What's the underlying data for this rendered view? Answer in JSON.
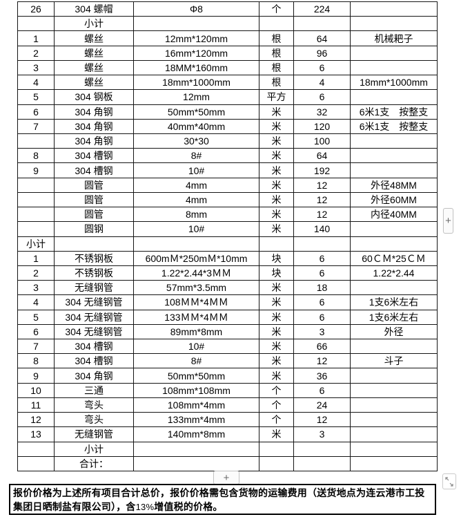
{
  "table": {
    "rows": [
      [
        "26",
        "304 螺帽",
        "Φ8",
        "个",
        "224",
        ""
      ],
      [
        "",
        "小计",
        "",
        "",
        "",
        ""
      ],
      [
        "1",
        "螺丝",
        "12mm*120mm",
        "根",
        "64",
        "机械耙子"
      ],
      [
        "2",
        "螺丝",
        "16mm*120mm",
        "根",
        "96",
        ""
      ],
      [
        "3",
        "螺丝",
        "18MM*160mm",
        "根",
        "6",
        ""
      ],
      [
        "4",
        "螺丝",
        "18mm*1000mm",
        "根",
        "4",
        "18mm*1000mm"
      ],
      [
        "5",
        "304 钢板",
        "12mm",
        "平方",
        "6",
        ""
      ],
      [
        "6",
        "304 角钢",
        "50mm*50mm",
        "米",
        "32",
        "6米1支　按整支"
      ],
      [
        "7",
        "304 角钢",
        "40mm*40mm",
        "米",
        "120",
        "6米1支　按整支"
      ],
      [
        "",
        "304 角钢",
        "30*30",
        "米",
        "100",
        ""
      ],
      [
        "8",
        "304 槽钢",
        "8#",
        "米",
        "64",
        ""
      ],
      [
        "9",
        "304 槽钢",
        "10#",
        "米",
        "192",
        ""
      ],
      [
        "",
        "圆管",
        "4mm",
        "米",
        "12",
        "外径48MM"
      ],
      [
        "",
        "圆管",
        "4mm",
        "米",
        "12",
        "外径60MM"
      ],
      [
        "",
        "圆管",
        "8mm",
        "米",
        "12",
        "内径40MM"
      ],
      [
        "",
        "圆钢",
        "10#",
        "米",
        "140",
        ""
      ],
      [
        "小计",
        "",
        "",
        "",
        "",
        ""
      ],
      [
        "1",
        "不锈钢板",
        "600mＭ*250mＭ*10mm",
        "块",
        "6",
        "60ＣＭ*25ＣＭ"
      ],
      [
        "2",
        "不锈钢板",
        "1.22*2.44*3ＭＭ",
        "块",
        "6",
        "1.22*2.44"
      ],
      [
        "3",
        "无缝钢管",
        "57mm*3.5mm",
        "米",
        "18",
        ""
      ],
      [
        "4",
        "304 无缝钢管",
        "108ＭＭ*4ＭＭ",
        "米",
        "6",
        "1支6米左右"
      ],
      [
        "5",
        "304 无缝钢管",
        "133ＭＭ*4ＭＭ",
        "米",
        "6",
        "1支6米左右"
      ],
      [
        "6",
        "304 无缝钢管",
        "89mm*8mm",
        "米",
        "3",
        "外径"
      ],
      [
        "7",
        "304 槽钢",
        "10#",
        "米",
        "66",
        ""
      ],
      [
        "8",
        "304 槽钢",
        "8#",
        "米",
        "12",
        "斗子"
      ],
      [
        "9",
        "304 角钢",
        "50mm*50mm",
        "米",
        "36",
        ""
      ],
      [
        "10",
        "三通",
        "108mm*108mm",
        "个",
        "6",
        ""
      ],
      [
        "11",
        "弯头",
        "108mm*4mm",
        "个",
        "24",
        ""
      ],
      [
        "12",
        "弯头",
        "133mm*4mm",
        "个",
        "12",
        ""
      ],
      [
        "13",
        "无缝钢管",
        "140mm*8mm",
        "米",
        "3",
        ""
      ],
      [
        "",
        "小计",
        "",
        "",
        "",
        ""
      ],
      [
        "",
        "合计：",
        "",
        "",
        "",
        ""
      ]
    ]
  },
  "controls": {
    "add_column_label": "+",
    "add_row_label": "+"
  },
  "note": {
    "before": "报价价格为上述所有项目合计总价，报价价格需包含货物的运输费用（送货地点为连云港市工投集团日晒制盐有限公司），含",
    "percent": "13%",
    "after": "增值税的价格。"
  }
}
